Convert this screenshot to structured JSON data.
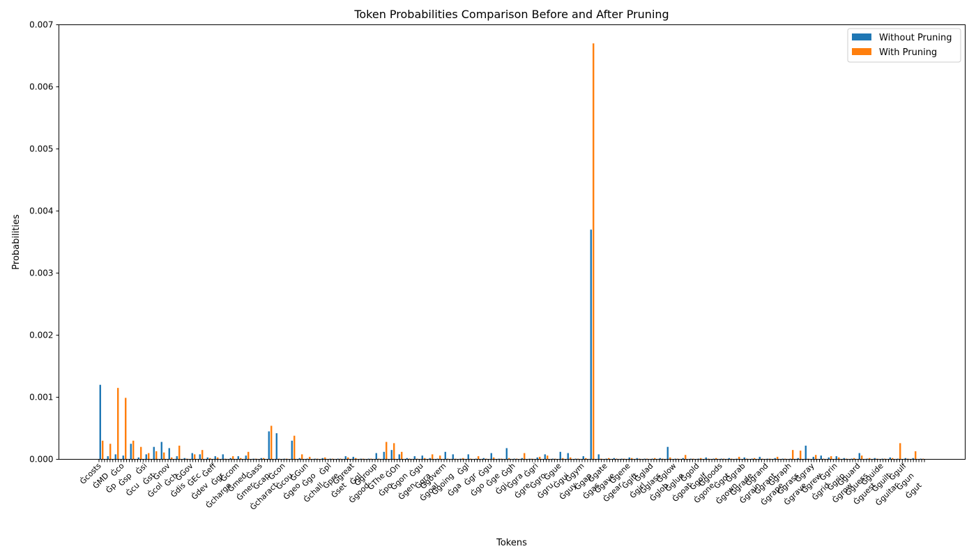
{
  "chart_data": {
    "type": "bar",
    "title": "Token Probabilities Comparison Before and After Pruning",
    "xlabel": "Tokens",
    "ylabel": "Probabilities",
    "ylim": [
      0,
      0.007
    ],
    "yticks": [
      0,
      0.001,
      0.002,
      0.003,
      0.004,
      0.005,
      0.006,
      0.007
    ],
    "ytick_labels": [
      "0.000",
      "0.001",
      "0.002",
      "0.003",
      "0.004",
      "0.005",
      "0.006",
      "0.007"
    ],
    "grid": false,
    "legend_position": "top-right",
    "legend": [
      "Without Pruning",
      "With Pruning"
    ],
    "colors": {
      "without": "#1f77b4",
      "with": "#ff7f0e"
    },
    "visible_x_labels": [
      "Ġcosts",
      "ĠMD",
      "Ġp",
      "Ġco",
      "Ġsp",
      "Ġcu",
      "Ġsi",
      "Ġst",
      "Ġcol",
      "Ġnov",
      "Ġch",
      "Ġdis",
      "ĠGov",
      "ĠEc",
      "Ġdev",
      "Ġeff",
      "Ġgr",
      "Ġcharge",
      "Ġcom",
      "Ġmed",
      "Ġmer",
      "Ġass",
      "Ġcap",
      "Ġcharact",
      "Ġcon",
      "Ġcou",
      "Ġgeo",
      "ĠGun",
      "Ġgo",
      "Ġchall",
      "Ġpl",
      "Ġpre",
      "Ġset",
      "Ġgreat",
      "Ġgl",
      "Ġgood",
      "Ġgroup",
      "ĠThe",
      "Ġpo",
      "ĠOn",
      "Ġgon",
      "Ġgen",
      "Ġgu",
      "Ġgra",
      "Ġgoal",
      "Ġgovern",
      "Ġgoing",
      "Ġga",
      "Ġgl",
      "Ġgr",
      "Ġgo",
      "Ġgu",
      "Ġge",
      "Ġgi",
      "Ġgh",
      "Ġgra",
      "Ġgre",
      "Ġgri",
      "Ġgro",
      "Ġgru",
      "Ġgue",
      "Ġgui",
      "Ġguy",
      "Ġgym",
      "Ġgap",
      "Ġgas",
      "Ġgate",
      "Ġgave",
      "Ġgear",
      "Ġgene",
      "Ġgift",
      "Ġgirl",
      "Ġglad",
      "Ġglass",
      "Ġglob",
      "Ġglow",
      "Ġglue",
      "Ġgoat",
      "Ġgold",
      "Ġgolf",
      "Ġgone",
      "Ġgoods",
      "Ġgot",
      "Ġgown",
      "Ġgrab",
      "Ġgrade",
      "Ġgrain",
      "Ġgrand",
      "Ġgrant",
      "Ġgrape",
      "Ġgraph",
      "Ġgrass",
      "Ġgrave",
      "Ġgray",
      "Ġgrew",
      "Ġgrid",
      "Ġgrin",
      "Ġgrip",
      "Ġgrow",
      "Ġguard",
      "Ġguess",
      "Ġguest",
      "Ġguide",
      "Ġguilt",
      "Ġguitar",
      "Ġgulf",
      "Ġgun",
      "Ġgut"
    ],
    "without_pruning": [
      0.0012,
      5e-05,
      8e-05,
      6e-05,
      0.00025,
      3e-05,
      8e-05,
      0.0002,
      0.00028,
      0.00018,
      5e-05,
      2e-05,
      0.0001,
      8e-05,
      3e-05,
      5e-05,
      8e-05,
      2e-05,
      5e-05,
      6e-05,
      1e-05,
      2e-05,
      0.00045,
      0.00042,
      1e-05,
      0.0003,
      2e-05,
      1e-05,
      1e-05,
      2e-05,
      1e-05,
      1e-05,
      5e-05,
      4e-05,
      1e-05,
      1e-05,
      0.0001,
      0.00012,
      0.00015,
      8e-05,
      2e-05,
      5e-05,
      6e-05,
      2e-05,
      1e-05,
      0.00012,
      8e-05,
      1e-05,
      8e-05,
      1e-05,
      2e-05,
      0.0001,
      1e-05,
      0.00018,
      1e-05,
      2e-05,
      1e-05,
      3e-05,
      8e-05,
      1e-05,
      0.00012,
      0.0001,
      1e-05,
      5e-05,
      0.0037,
      8e-05,
      1e-05,
      2e-05,
      1e-05,
      3e-05,
      2e-05,
      1e-05,
      1e-05,
      2e-05,
      0.0002,
      1e-05,
      2e-05,
      1e-05,
      1e-05,
      3e-05,
      1e-05,
      1e-05,
      2e-05,
      1e-05,
      3e-05,
      1e-05,
      4e-05,
      1e-05,
      2e-05,
      1e-05,
      1e-05,
      2e-05,
      0.00022,
      4e-05,
      6e-05,
      3e-05,
      5e-05,
      2e-05,
      1e-05,
      0.0001,
      1e-05,
      2e-05,
      1e-05,
      3e-05,
      1e-05,
      2e-05,
      2e-05,
      1e-05
    ],
    "with_pruning": [
      0.0003,
      0.00025,
      0.00115,
      0.00099,
      0.0003,
      0.0002,
      0.0001,
      0.00013,
      0.00011,
      3e-05,
      0.00022,
      1e-05,
      8e-05,
      0.00015,
      2e-05,
      3e-05,
      1e-05,
      5e-05,
      2e-05,
      0.00012,
      1e-05,
      2e-05,
      0.00054,
      1e-05,
      1e-05,
      0.00038,
      8e-05,
      4e-05,
      1e-05,
      3e-05,
      1e-05,
      1e-05,
      3e-05,
      2e-05,
      1e-05,
      1e-05,
      1e-05,
      0.00028,
      0.00026,
      0.00012,
      1e-05,
      1e-05,
      2e-05,
      8e-05,
      6e-05,
      1e-05,
      1e-05,
      2e-05,
      1e-05,
      5e-05,
      1e-05,
      3e-05,
      1e-05,
      2e-05,
      1e-05,
      0.0001,
      1e-05,
      4e-05,
      6e-05,
      1e-05,
      2e-05,
      3e-05,
      1e-05,
      2e-05,
      0.0067,
      1e-05,
      2e-05,
      1e-05,
      1e-05,
      2e-05,
      1e-05,
      1e-05,
      2e-05,
      1e-05,
      3e-05,
      1e-05,
      7e-05,
      1e-05,
      2e-05,
      1e-05,
      2e-05,
      1e-05,
      1e-05,
      4e-05,
      1e-05,
      2e-05,
      1e-05,
      1e-05,
      4e-05,
      1e-05,
      0.00015,
      0.00014,
      1e-05,
      7e-05,
      1e-05,
      5e-05,
      3e-05,
      1e-05,
      2e-05,
      6e-05,
      2e-05,
      1e-05,
      1e-05,
      2e-05,
      0.00026,
      1e-05,
      0.00013,
      1e-05
    ]
  }
}
